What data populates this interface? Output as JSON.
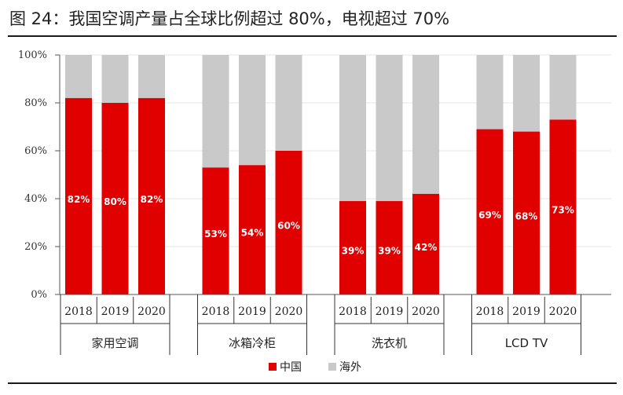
{
  "title": "图 24：我国空调产量占全球比例超过 80%，电视超过 70%",
  "colors": {
    "domestic": "#e00000",
    "overseas": "#c9c9c9"
  },
  "chart_data": {
    "type": "bar",
    "stacked": true,
    "percent": true,
    "ylim": [
      0,
      100
    ],
    "yticks": [
      "0%",
      "20%",
      "40%",
      "60%",
      "80%",
      "100%"
    ],
    "groups": [
      {
        "name": "家用空调",
        "years": [
          "2018",
          "2019",
          "2020"
        ],
        "domestic": [
          82,
          80,
          82
        ],
        "labels": [
          "82%",
          "80%",
          "82%"
        ]
      },
      {
        "name": "冰箱冷柜",
        "years": [
          "2018",
          "2019",
          "2020"
        ],
        "domestic": [
          53,
          54,
          60
        ],
        "labels": [
          "53%",
          "54%",
          "60%"
        ]
      },
      {
        "name": "洗衣机",
        "years": [
          "2018",
          "2019",
          "2020"
        ],
        "domestic": [
          39,
          39,
          42
        ],
        "labels": [
          "39%",
          "39%",
          "42%"
        ]
      },
      {
        "name": "LCD TV",
        "years": [
          "2018",
          "2019",
          "2020"
        ],
        "domestic": [
          69,
          68,
          73
        ],
        "labels": [
          "69%",
          "68%",
          "73%"
        ]
      }
    ],
    "series": [
      {
        "name": "中国",
        "color": "#e00000"
      },
      {
        "name": "海外",
        "color": "#c9c9c9"
      }
    ],
    "legend_position": "bottom-center",
    "grid": true
  }
}
